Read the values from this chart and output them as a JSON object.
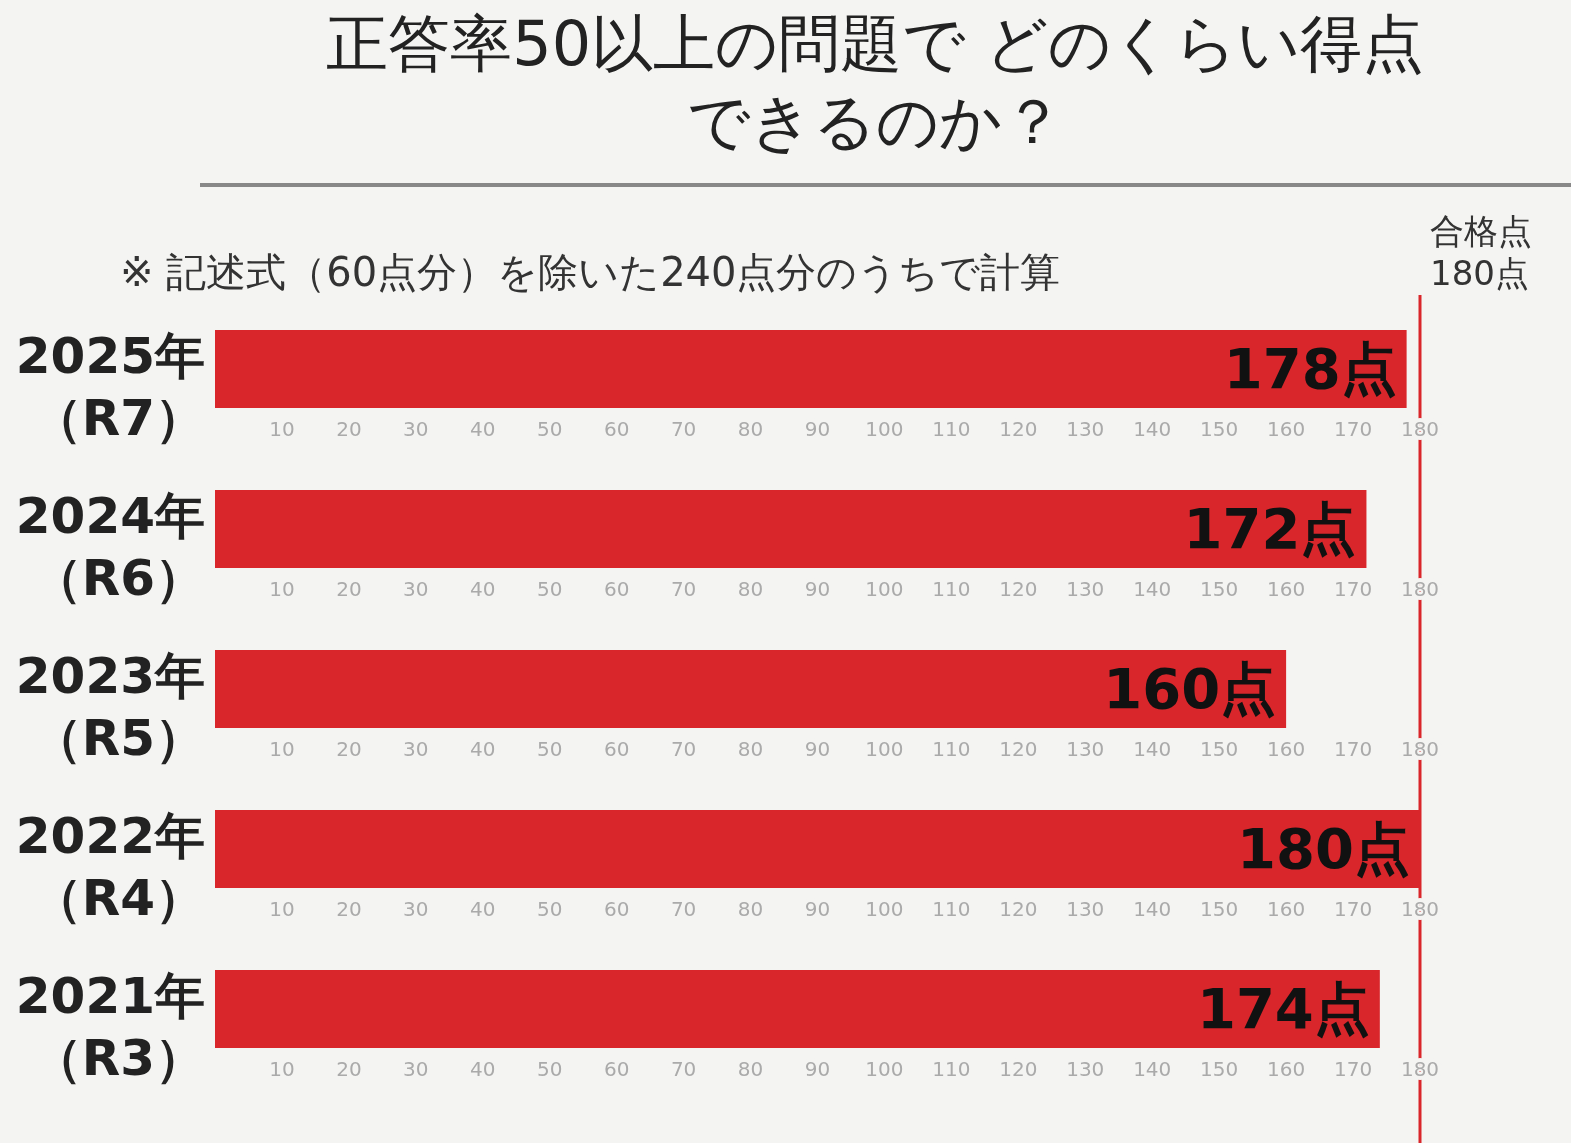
{
  "chart_data": [
    {
      "type": "bar",
      "orientation": "horizontal",
      "title": "正答率50以上の問題で どのくらい得点できるのか？",
      "subtitle": "※ 記述式（60点分）を除いた240点分のうちで計算",
      "categories": [
        "2025年（R7）"
      ],
      "values": [
        178
      ],
      "value_labels": [
        "178点"
      ],
      "color": "#d9262b",
      "xlim": [
        0,
        180
      ],
      "xticks": [
        10,
        20,
        30,
        40,
        50,
        60,
        70,
        80,
        90,
        100,
        110,
        120,
        130,
        140,
        150,
        160,
        170,
        180
      ],
      "ref_lines": [
        {
          "axis": "x",
          "value": 180,
          "label": "合格点 180点",
          "color": "#d9262b"
        }
      ]
    },
    {
      "type": "bar",
      "orientation": "horizontal",
      "categories": [
        "2024年（R6）"
      ],
      "values": [
        172
      ],
      "value_labels": [
        "172点"
      ],
      "color": "#d9262b",
      "xlim": [
        0,
        180
      ],
      "xticks": [
        10,
        20,
        30,
        40,
        50,
        60,
        70,
        80,
        90,
        100,
        110,
        120,
        130,
        140,
        150,
        160,
        170,
        180
      ]
    },
    {
      "type": "bar",
      "orientation": "horizontal",
      "categories": [
        "2023年（R5）"
      ],
      "values": [
        160
      ],
      "value_labels": [
        "160点"
      ],
      "color": "#d9262b",
      "xlim": [
        0,
        180
      ],
      "xticks": [
        10,
        20,
        30,
        40,
        50,
        60,
        70,
        80,
        90,
        100,
        110,
        120,
        130,
        140,
        150,
        160,
        170,
        180
      ]
    },
    {
      "type": "bar",
      "orientation": "horizontal",
      "categories": [
        "2022年（R4）"
      ],
      "values": [
        180
      ],
      "value_labels": [
        "180点"
      ],
      "color": "#d9262b",
      "xlim": [
        0,
        180
      ],
      "xticks": [
        10,
        20,
        30,
        40,
        50,
        60,
        70,
        80,
        90,
        100,
        110,
        120,
        130,
        140,
        150,
        160,
        170,
        180
      ]
    },
    {
      "type": "bar",
      "orientation": "horizontal",
      "categories": [
        "2021年（R3）"
      ],
      "values": [
        174
      ],
      "value_labels": [
        "174点"
      ],
      "color": "#d9262b",
      "xlim": [
        0,
        180
      ],
      "xticks": [
        10,
        20,
        30,
        40,
        50,
        60,
        70,
        80,
        90,
        100,
        110,
        120,
        130,
        140,
        150,
        160,
        170,
        180
      ]
    }
  ]
}
